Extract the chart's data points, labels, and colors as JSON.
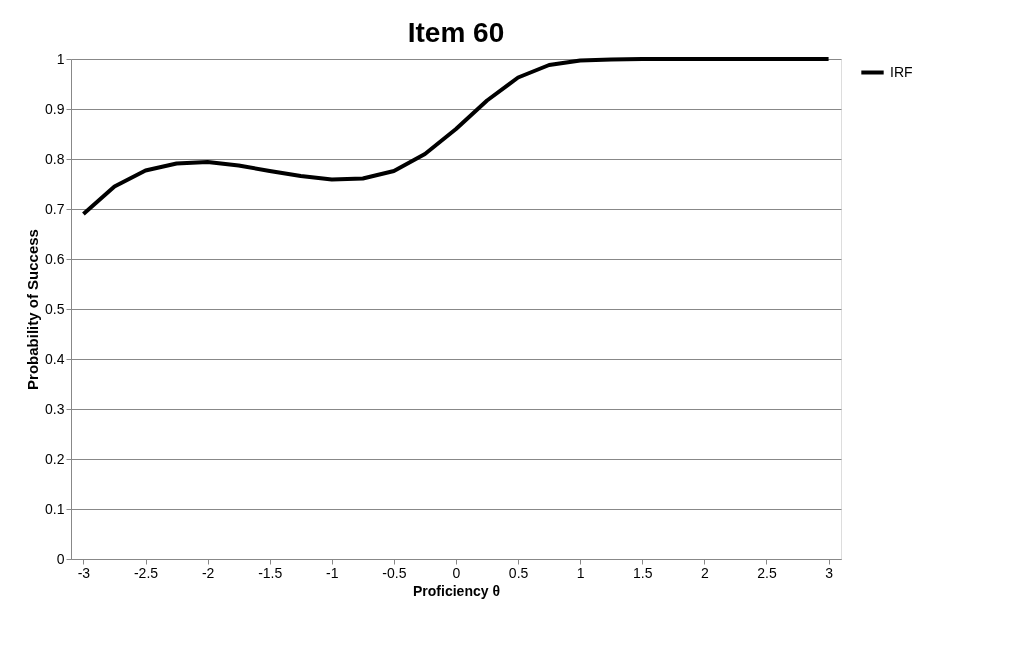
{
  "chart_data": {
    "type": "line",
    "title": "Item 60",
    "xlabel": "Proficiency θ",
    "ylabel": "Probability of Success",
    "x": [
      -3,
      -2.75,
      -2.5,
      -2.25,
      -2,
      -1.75,
      -1.5,
      -1.25,
      -1,
      -0.75,
      -0.5,
      -0.25,
      0,
      0.25,
      0.5,
      0.75,
      1,
      1.25,
      1.5,
      1.75,
      2,
      2.25,
      2.5,
      2.75,
      3
    ],
    "series": [
      {
        "name": "IRF",
        "color": "#000000",
        "values": [
          0.69,
          0.745,
          0.777,
          0.791,
          0.794,
          0.787,
          0.776,
          0.766,
          0.759,
          0.761,
          0.776,
          0.81,
          0.86,
          0.917,
          0.963,
          0.988,
          0.997,
          0.999,
          1,
          1,
          1,
          1,
          1,
          1,
          1
        ]
      }
    ],
    "xlim": [
      -3.1,
      3.1
    ],
    "xticks": [
      -3,
      -2.5,
      -2,
      -1.5,
      -1,
      -0.5,
      0,
      0.5,
      1,
      1.5,
      2,
      2.5,
      3
    ],
    "ylim": [
      0,
      1
    ],
    "yticks": [
      0,
      0.1,
      0.2,
      0.3,
      0.4,
      0.5,
      0.6,
      0.7,
      0.8,
      0.9,
      1
    ],
    "grid": "y",
    "legend": "right",
    "marker": "none",
    "line_style": "solid"
  }
}
